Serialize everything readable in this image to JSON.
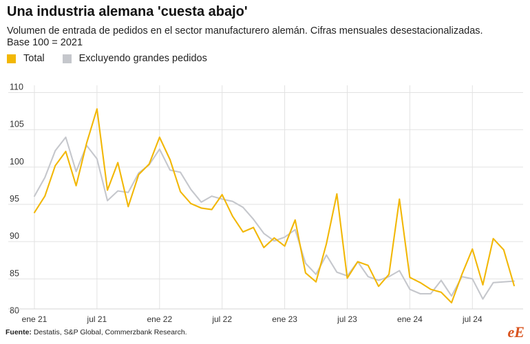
{
  "header": {
    "title": "Una industria alemana 'cuesta abajo'",
    "subtitle_line1": "Volumen de entrada de pedidos en el sector manufacturero alemán. Cifras mensuales desestacionalizadas.",
    "subtitle_line2": "Base 100 = 2021"
  },
  "footer": {
    "source_label": "Fuente:",
    "source_text": " Destatis, S&P Global, Commerzbank Research.",
    "logo_text": "eE"
  },
  "colors": {
    "total": "#f2b705",
    "excl": "#c5c7cc",
    "grid": "#e2e2e2",
    "axis_text": "#333333"
  },
  "chart_data": {
    "type": "line",
    "x_tick_labels": [
      "ene 21",
      "jul 21",
      "ene 22",
      "jul 22",
      "ene 23",
      "jul 23",
      "ene 24",
      "jul 24"
    ],
    "x_tick_positions": [
      0,
      6,
      12,
      18,
      24,
      30,
      36,
      42
    ],
    "ylim": [
      80,
      110
    ],
    "yticks": [
      80,
      85,
      90,
      95,
      100,
      105,
      110
    ],
    "grid": true,
    "legend_position": "top-left",
    "series": [
      {
        "name": "Total",
        "color": "#f2b705",
        "values": [
          93.9,
          96.1,
          100.2,
          102.1,
          97.5,
          103.2,
          107.8,
          96.9,
          100.6,
          94.7,
          99.0,
          100.4,
          104.0,
          101.0,
          96.7,
          95.1,
          94.5,
          94.3,
          96.3,
          93.4,
          91.3,
          91.9,
          89.2,
          90.5,
          89.4,
          92.9,
          85.8,
          84.6,
          89.7,
          96.4,
          85.1,
          87.3,
          86.8,
          84.0,
          85.6,
          95.7,
          85.2,
          84.5,
          83.6,
          83.2,
          81.8,
          85.6,
          89.0,
          84.2,
          90.4,
          88.9,
          84.1
        ]
      },
      {
        "name": "Excluyendo grandes pedidos",
        "color": "#c5c7cc",
        "values": [
          96.1,
          98.6,
          102.2,
          104.0,
          99.4,
          102.9,
          101.1,
          95.5,
          96.8,
          96.6,
          99.2,
          100.3,
          102.4,
          99.6,
          99.3,
          97.0,
          95.3,
          96.1,
          95.7,
          95.4,
          94.6,
          93.0,
          91.1,
          90.1,
          90.6,
          91.6,
          87.1,
          85.6,
          88.2,
          85.9,
          85.4,
          87.3,
          85.3,
          84.8,
          85.3,
          86.1,
          83.6,
          83.0,
          83.0,
          84.8,
          82.7,
          85.3,
          85.0,
          82.3,
          84.5,
          84.6,
          84.7
        ]
      }
    ]
  }
}
